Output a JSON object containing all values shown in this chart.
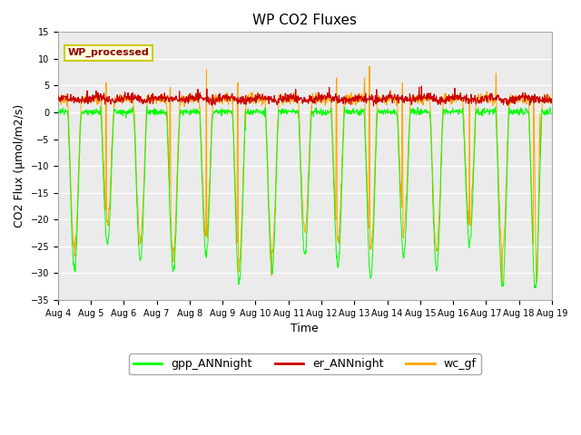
{
  "title": "WP CO2 Fluxes",
  "xlabel": "Time",
  "ylabel": "CO2 Flux (μmol/m2/s)",
  "ylim": [
    -35,
    15
  ],
  "yticks": [
    -35,
    -30,
    -25,
    -20,
    -15,
    -10,
    -5,
    0,
    5,
    10,
    15
  ],
  "start_day": 4,
  "end_day": 19,
  "n_days": 15,
  "points_per_day": 96,
  "color_gpp": "#00FF00",
  "color_er": "#CC0000",
  "color_wc": "#FFA500",
  "legend_label": "WP_processed",
  "legend_text_color": "#8B0000",
  "legend_bg_color": "#FFFFE0",
  "legend_border_color": "#CCCC00",
  "line_labels": [
    "gpp_ANNnight",
    "er_ANNnight",
    "wc_gf"
  ],
  "bg_color": "#EBEBEB",
  "fig_bg_color": "#FFFFFF",
  "er_base": 2.5,
  "er_noise": 0.4,
  "tick_label_size": 7,
  "axis_label_size": 9,
  "title_size": 11
}
